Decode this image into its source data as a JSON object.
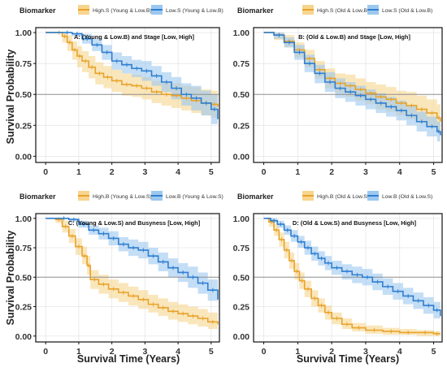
{
  "figure": {
    "ylabel": "Survival Probability",
    "xlabel": "Survival Time (Years)"
  },
  "colors": {
    "orange": "#E8A32B",
    "orange_band": "#F7D58E",
    "blue": "#2F7FD1",
    "blue_band": "#9CC8F0",
    "refline": "#8f8f8f",
    "grid": "#e6e6e6"
  },
  "chart_data": [
    {
      "type": "line",
      "title": "A: (Young & Low.B) and Stage [Low, High]",
      "legend_title": "Biomarker",
      "legend_position": "top-left",
      "xlim": [
        -0.3,
        5.25
      ],
      "ylim": [
        -0.05,
        1.04
      ],
      "x_ticks": [
        "0",
        "1",
        "2",
        "3",
        "4",
        "5"
      ],
      "y_ticks": [
        "0.00",
        "0.25",
        "0.50",
        "0.75",
        "1.00"
      ],
      "reference_line": 0.5,
      "series": [
        {
          "name": "High.S (Young & Low.B)",
          "color": "orange",
          "x": [
            0,
            0.3,
            0.5,
            0.65,
            0.8,
            0.95,
            1.1,
            1.3,
            1.5,
            1.75,
            2.0,
            2.3,
            2.6,
            2.9,
            3.2,
            3.5,
            3.8,
            4.1,
            4.4,
            4.7,
            5.0,
            5.2
          ],
          "y": [
            1.0,
            1.0,
            0.97,
            0.92,
            0.86,
            0.81,
            0.77,
            0.72,
            0.67,
            0.64,
            0.61,
            0.58,
            0.57,
            0.55,
            0.52,
            0.5,
            0.49,
            0.47,
            0.45,
            0.43,
            0.42,
            0.4
          ],
          "lower": [
            1.0,
            1.0,
            0.92,
            0.85,
            0.78,
            0.72,
            0.68,
            0.63,
            0.58,
            0.55,
            0.52,
            0.49,
            0.48,
            0.46,
            0.43,
            0.41,
            0.39,
            0.37,
            0.35,
            0.33,
            0.31,
            0.29
          ],
          "upper": [
            1.0,
            1.0,
            1.0,
            0.98,
            0.93,
            0.89,
            0.85,
            0.81,
            0.76,
            0.73,
            0.7,
            0.67,
            0.66,
            0.64,
            0.61,
            0.6,
            0.59,
            0.57,
            0.56,
            0.54,
            0.53,
            0.51
          ]
        },
        {
          "name": "Low.S (Young & Low.B)",
          "color": "blue",
          "x": [
            0,
            0.5,
            0.8,
            1.1,
            1.4,
            1.7,
            2.0,
            2.3,
            2.6,
            2.9,
            3.2,
            3.5,
            3.8,
            4.1,
            4.4,
            4.7,
            5.0,
            5.2
          ],
          "y": [
            1.0,
            1.0,
            0.99,
            0.95,
            0.9,
            0.84,
            0.77,
            0.74,
            0.71,
            0.69,
            0.65,
            0.6,
            0.55,
            0.5,
            0.47,
            0.43,
            0.38,
            0.3
          ],
          "lower": [
            1.0,
            1.0,
            0.97,
            0.91,
            0.85,
            0.78,
            0.7,
            0.67,
            0.64,
            0.61,
            0.57,
            0.52,
            0.46,
            0.41,
            0.37,
            0.33,
            0.26,
            0.18
          ],
          "upper": [
            1.0,
            1.0,
            1.0,
            0.99,
            0.95,
            0.9,
            0.84,
            0.81,
            0.78,
            0.77,
            0.73,
            0.68,
            0.64,
            0.59,
            0.57,
            0.53,
            0.5,
            0.44
          ]
        }
      ]
    },
    {
      "type": "line",
      "title": "B: (Old & Low.B) and Stage [Low, High]",
      "legend_title": "Biomarker",
      "legend_position": "top-left",
      "xlim": [
        -0.3,
        5.25
      ],
      "ylim": [
        -0.05,
        1.04
      ],
      "x_ticks": [
        "0",
        "1",
        "2",
        "3",
        "4",
        "5"
      ],
      "y_ticks": [
        "0.00",
        "0.25",
        "0.50",
        "0.75",
        "1.00"
      ],
      "reference_line": 0.5,
      "series": [
        {
          "name": "High.S (Old & Low.B)",
          "color": "orange",
          "x": [
            0,
            0.3,
            0.6,
            0.9,
            1.2,
            1.5,
            1.8,
            2.1,
            2.4,
            2.7,
            3.0,
            3.3,
            3.6,
            3.9,
            4.2,
            4.5,
            4.8,
            5.1,
            5.2
          ],
          "y": [
            1.0,
            0.98,
            0.93,
            0.86,
            0.79,
            0.7,
            0.63,
            0.59,
            0.57,
            0.54,
            0.51,
            0.48,
            0.46,
            0.43,
            0.41,
            0.38,
            0.35,
            0.31,
            0.28
          ],
          "lower": [
            1.0,
            0.94,
            0.88,
            0.8,
            0.72,
            0.63,
            0.55,
            0.51,
            0.48,
            0.45,
            0.42,
            0.38,
            0.36,
            0.33,
            0.3,
            0.27,
            0.24,
            0.2,
            0.16
          ],
          "upper": [
            1.0,
            1.0,
            0.98,
            0.92,
            0.86,
            0.77,
            0.71,
            0.67,
            0.66,
            0.63,
            0.6,
            0.58,
            0.56,
            0.53,
            0.52,
            0.49,
            0.46,
            0.42,
            0.4
          ]
        },
        {
          "name": "Low.S (Old & Low.B)",
          "color": "blue",
          "x": [
            0,
            0.3,
            0.6,
            0.9,
            1.2,
            1.5,
            1.8,
            2.1,
            2.4,
            2.7,
            3.0,
            3.3,
            3.6,
            3.9,
            4.2,
            4.5,
            4.8,
            5.1,
            5.2
          ],
          "y": [
            1.0,
            0.98,
            0.92,
            0.84,
            0.75,
            0.67,
            0.6,
            0.55,
            0.52,
            0.49,
            0.46,
            0.43,
            0.4,
            0.37,
            0.33,
            0.28,
            0.24,
            0.2,
            0.17
          ],
          "lower": [
            1.0,
            0.95,
            0.88,
            0.78,
            0.68,
            0.59,
            0.52,
            0.47,
            0.44,
            0.41,
            0.38,
            0.35,
            0.32,
            0.29,
            0.25,
            0.2,
            0.16,
            0.12,
            0.09
          ],
          "upper": [
            1.0,
            1.0,
            0.96,
            0.9,
            0.82,
            0.74,
            0.68,
            0.63,
            0.6,
            0.57,
            0.54,
            0.51,
            0.48,
            0.45,
            0.41,
            0.36,
            0.32,
            0.28,
            0.25
          ]
        }
      ]
    },
    {
      "type": "line",
      "title": "C: (Young & Low.S) and Busyness [Low, High]",
      "legend_title": "Biomarker",
      "legend_position": "top-left",
      "xlim": [
        -0.3,
        5.25
      ],
      "ylim": [
        -0.05,
        1.04
      ],
      "x_ticks": [
        "0",
        "1",
        "2",
        "3",
        "4",
        "5"
      ],
      "y_ticks": [
        "0.00",
        "0.25",
        "0.50",
        "0.75",
        "1.00"
      ],
      "reference_line": 0.5,
      "series": [
        {
          "name": "High.B (Young & Low.S)",
          "color": "orange",
          "x": [
            0,
            0.3,
            0.5,
            0.7,
            0.9,
            1.1,
            1.25,
            1.35,
            1.6,
            1.9,
            2.2,
            2.5,
            2.8,
            3.1,
            3.4,
            3.7,
            4.0,
            4.3,
            4.6,
            4.9,
            5.2
          ],
          "y": [
            1.0,
            0.99,
            0.93,
            0.85,
            0.76,
            0.68,
            0.6,
            0.48,
            0.44,
            0.4,
            0.37,
            0.34,
            0.31,
            0.27,
            0.24,
            0.21,
            0.19,
            0.17,
            0.15,
            0.12,
            0.1
          ],
          "lower": [
            1.0,
            0.96,
            0.88,
            0.79,
            0.69,
            0.61,
            0.52,
            0.4,
            0.36,
            0.32,
            0.29,
            0.26,
            0.23,
            0.2,
            0.17,
            0.14,
            0.12,
            0.1,
            0.08,
            0.06,
            0.05
          ],
          "upper": [
            1.0,
            1.0,
            0.98,
            0.91,
            0.83,
            0.76,
            0.68,
            0.56,
            0.52,
            0.48,
            0.45,
            0.42,
            0.39,
            0.35,
            0.32,
            0.29,
            0.27,
            0.25,
            0.23,
            0.2,
            0.17
          ]
        },
        {
          "name": "Low.B (Young & Low.S)",
          "color": "blue",
          "x": [
            0,
            0.4,
            0.7,
            1.0,
            1.3,
            1.6,
            1.9,
            2.2,
            2.5,
            2.8,
            3.1,
            3.4,
            3.7,
            4.0,
            4.3,
            4.6,
            4.9,
            5.2
          ],
          "y": [
            1.0,
            1.0,
            0.99,
            0.95,
            0.9,
            0.87,
            0.83,
            0.78,
            0.75,
            0.73,
            0.68,
            0.63,
            0.58,
            0.54,
            0.5,
            0.45,
            0.39,
            0.31
          ],
          "lower": [
            1.0,
            1.0,
            0.97,
            0.92,
            0.86,
            0.82,
            0.77,
            0.72,
            0.68,
            0.66,
            0.61,
            0.55,
            0.5,
            0.46,
            0.41,
            0.36,
            0.3,
            0.22
          ],
          "upper": [
            1.0,
            1.0,
            1.0,
            0.98,
            0.94,
            0.92,
            0.89,
            0.84,
            0.82,
            0.8,
            0.75,
            0.71,
            0.66,
            0.62,
            0.59,
            0.54,
            0.48,
            0.4
          ]
        }
      ]
    },
    {
      "type": "line",
      "title": "D: (Old & Low.S) and Busyness [Low, High]",
      "legend_title": "Biomarker",
      "legend_position": "top-left",
      "xlim": [
        -0.3,
        5.25
      ],
      "ylim": [
        -0.05,
        1.04
      ],
      "x_ticks": [
        "0",
        "1",
        "2",
        "3",
        "4",
        "5"
      ],
      "y_ticks": [
        "0.00",
        "0.25",
        "0.50",
        "0.75",
        "1.00"
      ],
      "reference_line": 0.5,
      "series": [
        {
          "name": "High.B (Old & Low.S)",
          "color": "orange",
          "x": [
            0,
            0.15,
            0.3,
            0.45,
            0.6,
            0.75,
            0.9,
            1.05,
            1.2,
            1.4,
            1.6,
            1.8,
            2.0,
            2.3,
            2.6,
            3.0,
            3.5,
            4.0,
            4.5,
            5.0,
            5.2
          ],
          "y": [
            1.0,
            0.97,
            0.9,
            0.82,
            0.73,
            0.64,
            0.55,
            0.47,
            0.4,
            0.32,
            0.26,
            0.2,
            0.15,
            0.1,
            0.07,
            0.05,
            0.04,
            0.03,
            0.03,
            0.02,
            0.02
          ],
          "lower": [
            1.0,
            0.93,
            0.85,
            0.76,
            0.66,
            0.57,
            0.48,
            0.4,
            0.33,
            0.25,
            0.2,
            0.14,
            0.1,
            0.06,
            0.04,
            0.02,
            0.01,
            0.01,
            0.0,
            0.0,
            0.0
          ],
          "upper": [
            1.0,
            1.0,
            0.95,
            0.88,
            0.8,
            0.71,
            0.62,
            0.54,
            0.47,
            0.39,
            0.32,
            0.26,
            0.2,
            0.15,
            0.11,
            0.09,
            0.07,
            0.06,
            0.05,
            0.04,
            0.04
          ]
        },
        {
          "name": "Low.B (Old & Low.S)",
          "color": "blue",
          "x": [
            0,
            0.2,
            0.4,
            0.6,
            0.8,
            1.0,
            1.2,
            1.4,
            1.6,
            1.8,
            2.0,
            2.3,
            2.6,
            2.9,
            3.2,
            3.5,
            3.8,
            4.1,
            4.4,
            4.7,
            5.0,
            5.2
          ],
          "y": [
            1.0,
            0.98,
            0.95,
            0.9,
            0.85,
            0.8,
            0.75,
            0.7,
            0.66,
            0.62,
            0.58,
            0.55,
            0.52,
            0.5,
            0.46,
            0.42,
            0.38,
            0.34,
            0.3,
            0.26,
            0.22,
            0.17
          ],
          "lower": [
            1.0,
            0.96,
            0.92,
            0.86,
            0.8,
            0.75,
            0.69,
            0.64,
            0.6,
            0.56,
            0.52,
            0.48,
            0.45,
            0.43,
            0.39,
            0.35,
            0.31,
            0.27,
            0.23,
            0.19,
            0.15,
            0.1
          ],
          "upper": [
            1.0,
            1.0,
            0.98,
            0.94,
            0.9,
            0.85,
            0.81,
            0.76,
            0.72,
            0.68,
            0.64,
            0.61,
            0.59,
            0.57,
            0.53,
            0.49,
            0.45,
            0.41,
            0.37,
            0.33,
            0.29,
            0.24
          ]
        }
      ]
    }
  ]
}
